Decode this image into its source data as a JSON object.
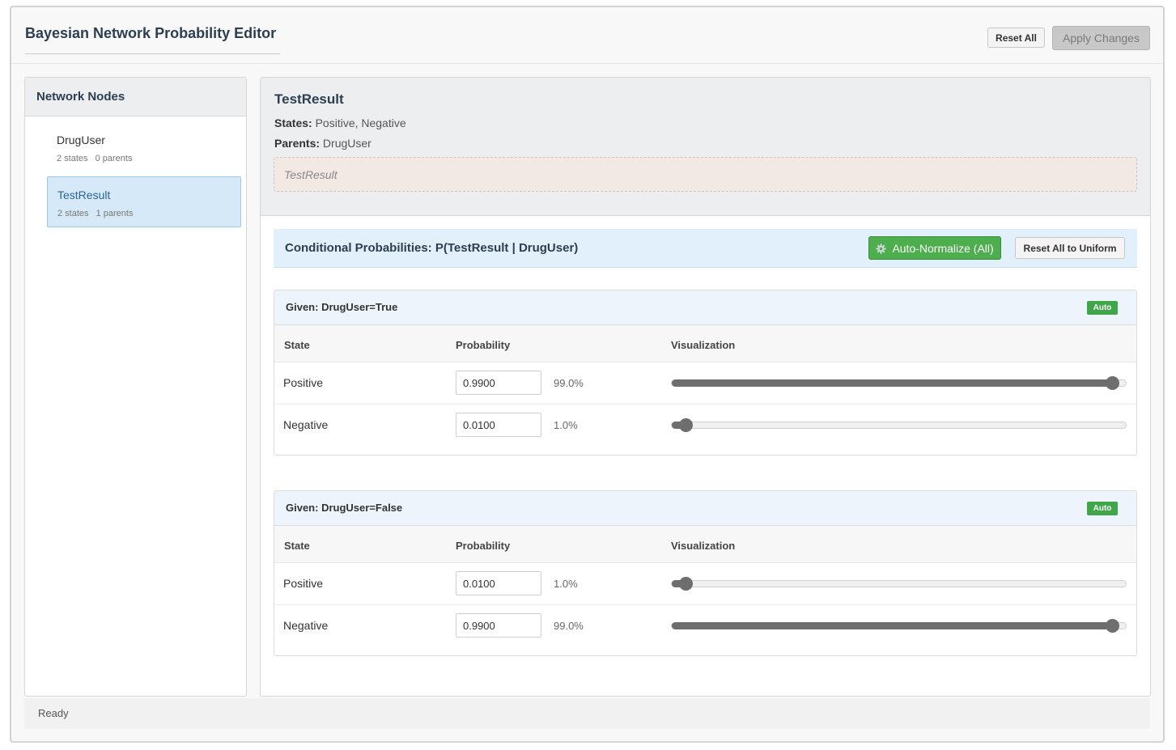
{
  "app": {
    "title": "Bayesian Network Probability Editor",
    "reset_all_label": "Reset All",
    "apply_label": "Apply Changes",
    "status": "Ready"
  },
  "sidebar": {
    "title": "Network Nodes",
    "nodes": [
      {
        "name": "DrugUser",
        "states": "2 states",
        "parents": "0 parents",
        "active": false
      },
      {
        "name": "TestResult",
        "states": "2 states",
        "parents": "1 parents",
        "active": true
      }
    ]
  },
  "node": {
    "name": "TestResult",
    "states_label": "States:",
    "states_value": "Positive, Negative",
    "parents_label": "Parents:",
    "parents_value": "DrugUser",
    "description": "TestResult"
  },
  "cpt": {
    "title": "Conditional Probabilities: P(TestResult | DrugUser)",
    "normalize_label": "Auto-Normalize (All)",
    "normalize_icon": "gear-icon",
    "uniform_label": "Reset All to Uniform",
    "columns": {
      "state": "State",
      "probability": "Probability",
      "visualization": "Visualization"
    },
    "groups": [
      {
        "title": "Given: DrugUser=True",
        "badge": "Auto",
        "rows": [
          {
            "state": "Positive",
            "value": "0.9900",
            "percent": "99.0%",
            "p": 0.99
          },
          {
            "state": "Negative",
            "value": "0.0100",
            "percent": "1.0%",
            "p": 0.01
          }
        ]
      },
      {
        "title": "Given: DrugUser=False",
        "badge": "Auto",
        "rows": [
          {
            "state": "Positive",
            "value": "0.0100",
            "percent": "1.0%",
            "p": 0.01
          },
          {
            "state": "Negative",
            "value": "0.9900",
            "percent": "99.0%",
            "p": 0.99
          }
        ]
      }
    ]
  }
}
